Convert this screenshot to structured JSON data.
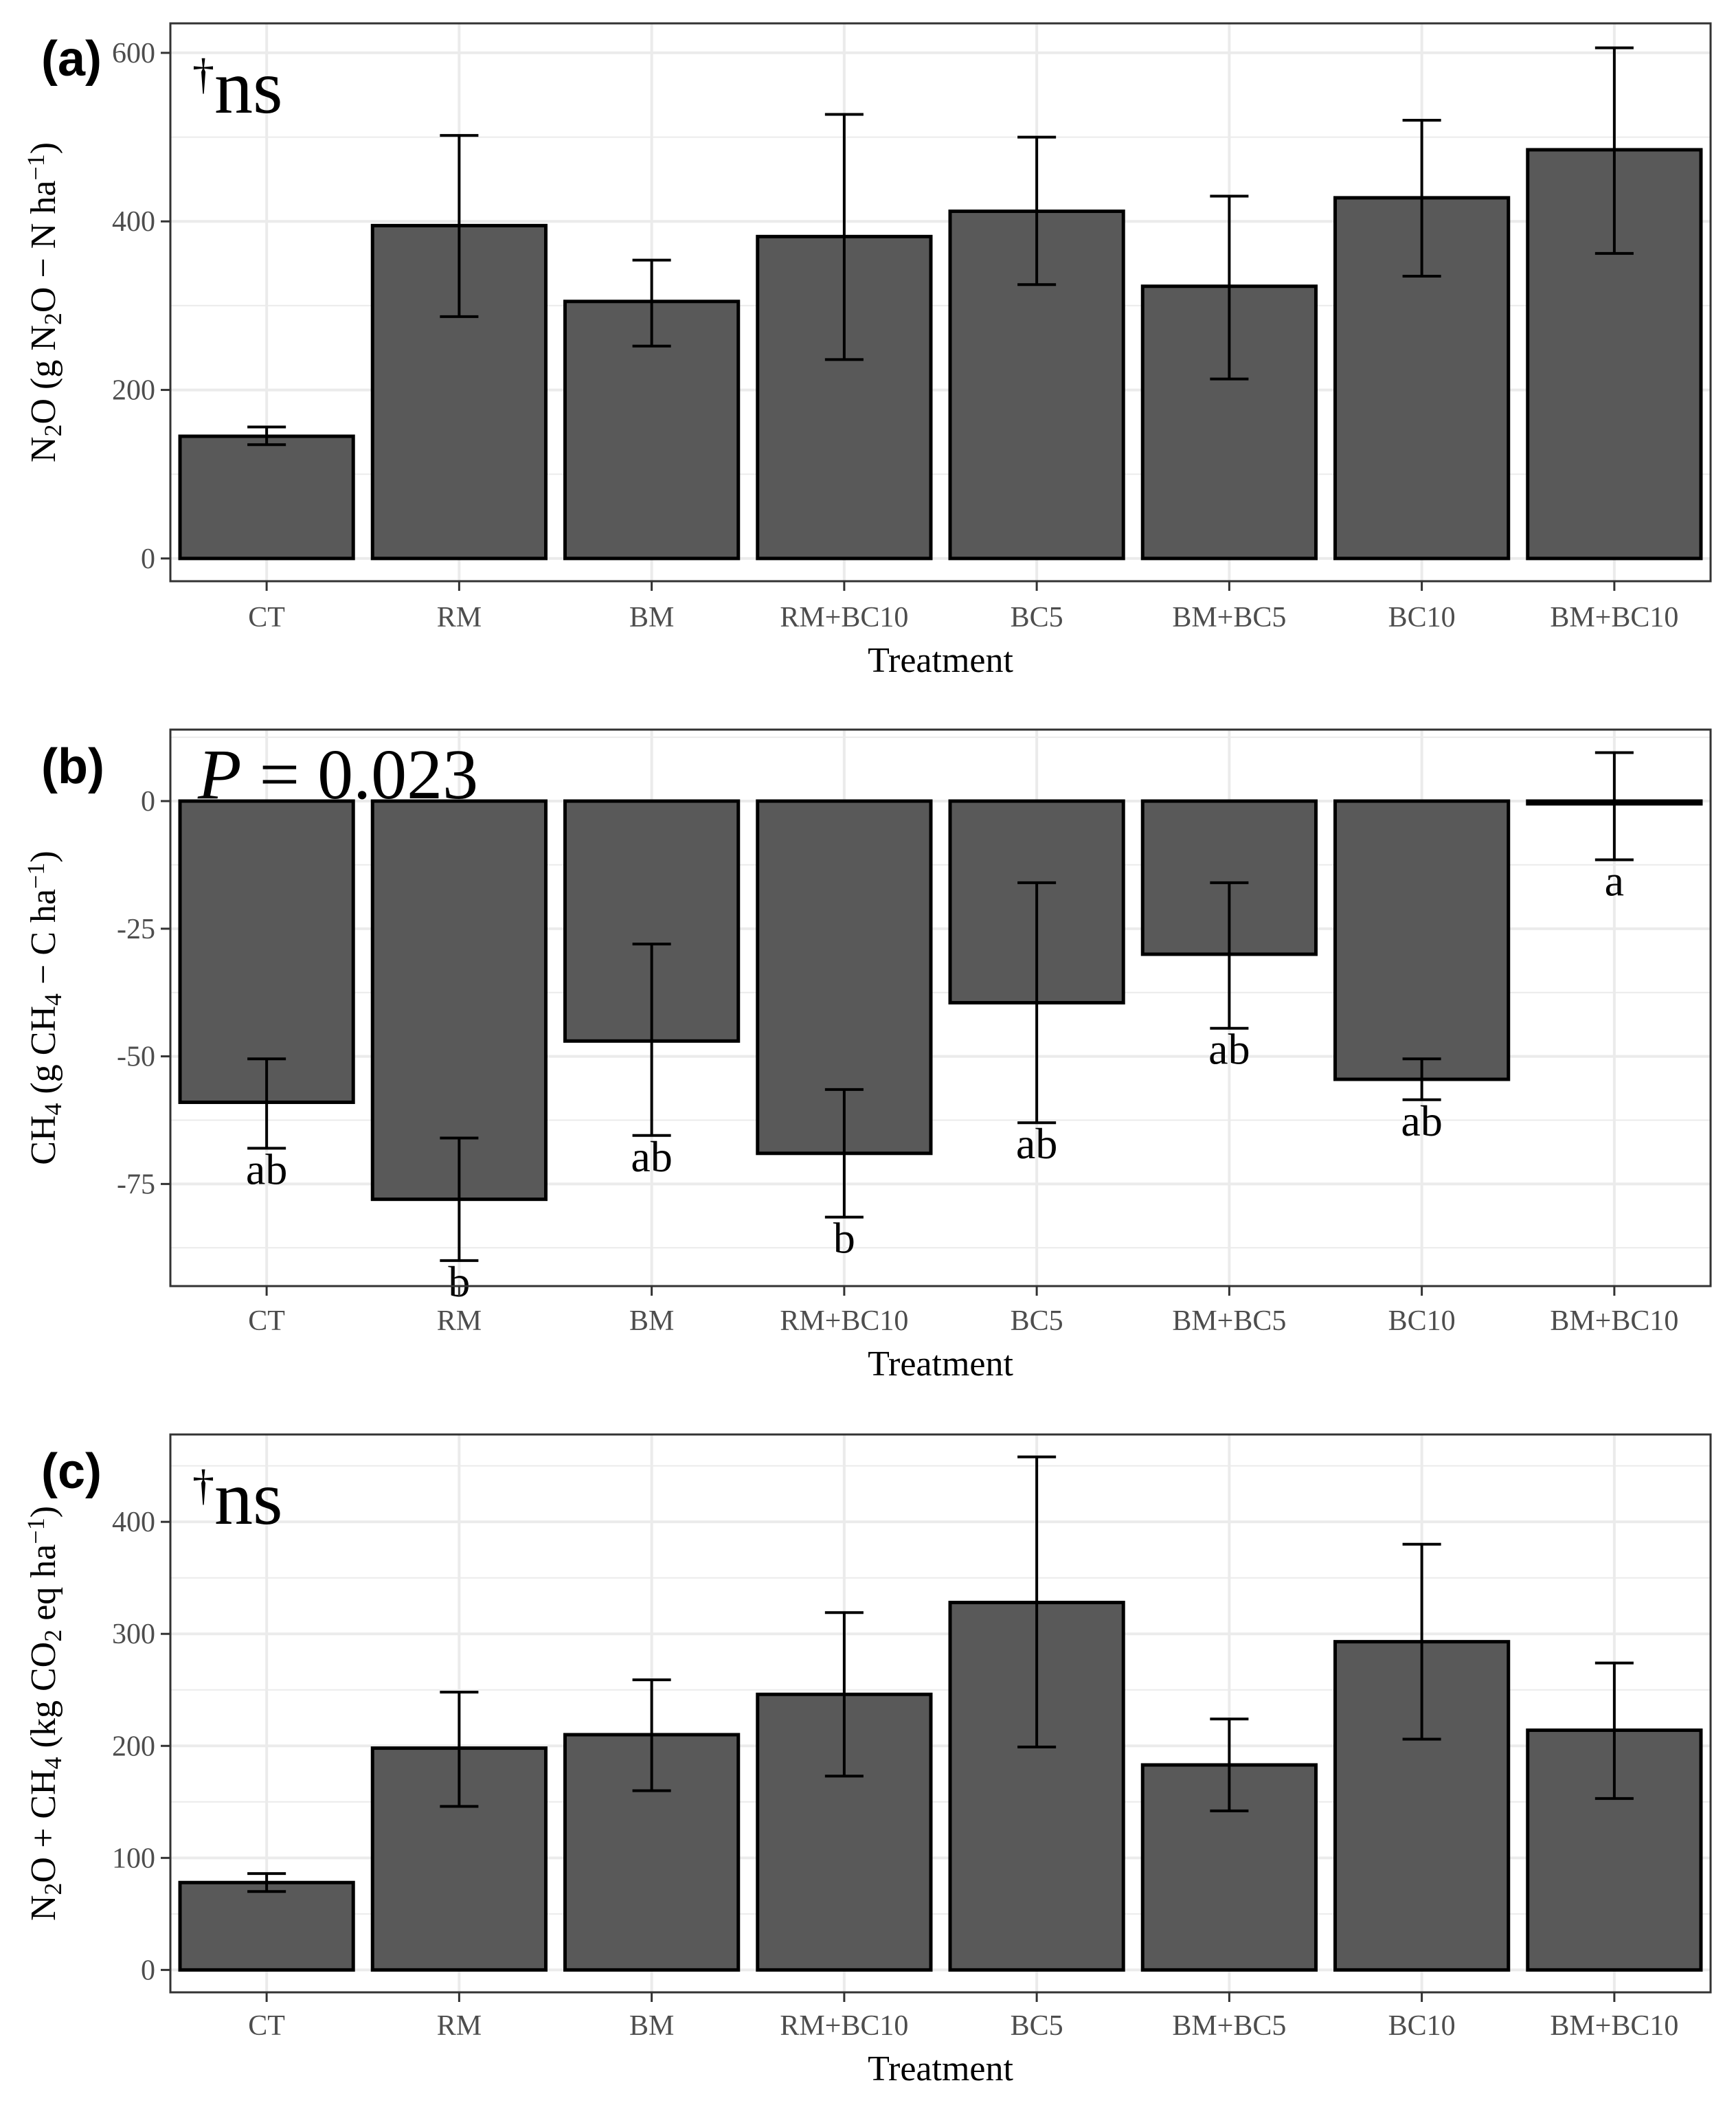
{
  "chart_data": [
    {
      "type": "bar",
      "panel": "(a)",
      "categories": [
        "CT",
        "RM",
        "BM",
        "RM+BC10",
        "BC5",
        "BM+BC5",
        "BC10",
        "BM+BC10"
      ],
      "values": [
        145,
        395,
        305,
        382,
        412,
        323,
        428,
        485
      ],
      "error_low": [
        135,
        287,
        252,
        236,
        325,
        213,
        335,
        362
      ],
      "error_high": [
        156,
        502,
        354,
        527,
        500,
        430,
        520,
        606
      ],
      "significance": [],
      "stat_dagger": "†",
      "stat_text": "ns",
      "xlabel": "Treatment",
      "ylabel_parts": [
        "N",
        "2",
        "O (g N",
        "2",
        "O − N ha",
        "−1",
        ")"
      ],
      "yticks": [
        0,
        200,
        400,
        600
      ],
      "ytick_labels": [
        "0",
        "200",
        "400",
        "600"
      ],
      "ylim": [
        -27,
        635
      ],
      "grid": true,
      "bar_color": "#595959"
    },
    {
      "type": "bar",
      "panel": "(b)",
      "categories": [
        "CT",
        "RM",
        "BM",
        "RM+BC10",
        "BC5",
        "BM+BC5",
        "BC10",
        "BM+BC10"
      ],
      "values": [
        -59,
        -78,
        -47,
        -69,
        -39.5,
        -30,
        -54.5,
        -0.5
      ],
      "error_low": [
        -68,
        -90,
        -65.5,
        -81.5,
        -63,
        -44.5,
        -58.5,
        -11.5
      ],
      "error_high": [
        -50.5,
        -66,
        -28,
        -56.5,
        -16,
        -16,
        -50.5,
        9.5
      ],
      "significance": [
        "ab",
        "b",
        "ab",
        "b",
        "ab",
        "ab",
        "ab",
        "a"
      ],
      "stat_italic": "P",
      "stat_text": " = 0.023",
      "xlabel": "Treatment",
      "ylabel_parts": [
        "CH",
        "4",
        " (g CH",
        "4",
        " − C ha",
        "−1",
        ")"
      ],
      "yticks": [
        0,
        -25,
        -50,
        -75
      ],
      "ytick_labels": [
        "0",
        "-25",
        "-50",
        "-75"
      ],
      "ylim": [
        -95,
        14
      ],
      "grid": true,
      "bar_color": "#595959"
    },
    {
      "type": "bar",
      "panel": "(c)",
      "categories": [
        "CT",
        "RM",
        "BM",
        "RM+BC10",
        "BC5",
        "BM+BC5",
        "BC10",
        "BM+BC10"
      ],
      "values": [
        78,
        198,
        210,
        246,
        328,
        183,
        293,
        214
      ],
      "error_low": [
        70,
        146,
        160,
        173,
        199,
        142,
        206,
        153
      ],
      "error_high": [
        86,
        248,
        259,
        319,
        458,
        224,
        380,
        274
      ],
      "significance": [],
      "stat_dagger": "†",
      "stat_text": "ns",
      "xlabel": "Treatment",
      "ylabel_parts": [
        "N",
        "2",
        "O + CH",
        "4",
        " (kg CO",
        "2",
        " eq ha",
        "−1",
        ")"
      ],
      "yticks": [
        0,
        100,
        200,
        300,
        400
      ],
      "ytick_labels": [
        "0",
        "100",
        "200",
        "300",
        "400"
      ],
      "ylim": [
        -20,
        478
      ],
      "grid": true,
      "bar_color": "#595959"
    }
  ]
}
